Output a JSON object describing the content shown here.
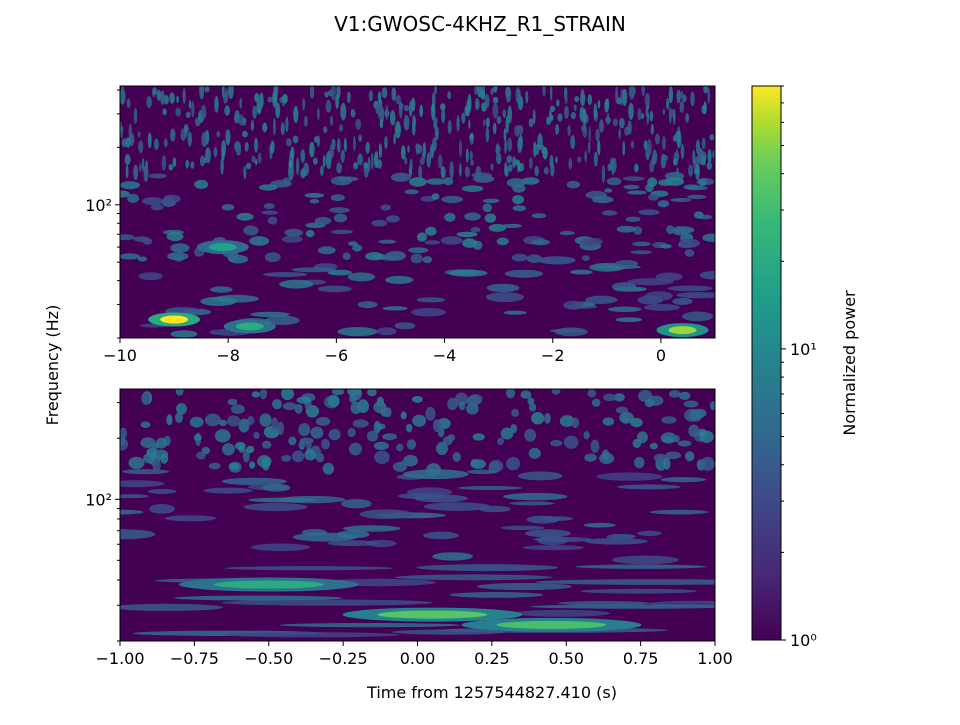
{
  "chart_data": {
    "type": "heatmap",
    "title": "V1:GWOSC-4KHZ_R1_STRAIN",
    "ylabel": "Frequency (Hz)",
    "xlabel": "Time from 1257544827.410 (s)",
    "yscale": "log",
    "panels": [
      {
        "name": "top",
        "xlim": [
          -10,
          1
        ],
        "xticks": [
          -10,
          -8,
          -6,
          -4,
          -2,
          0
        ],
        "xtick_labels": [
          "−10",
          "−8",
          "−6",
          "−4",
          "−2",
          "0"
        ],
        "yticks": [
          100
        ],
        "ytick_labels": [
          "10²"
        ],
        "bright_spots": [
          {
            "t": -9.0,
            "f": 25,
            "power": 80
          },
          {
            "t": 0.4,
            "f": 22,
            "power": 40
          },
          {
            "t": -7.6,
            "f": 23,
            "power": 15
          },
          {
            "t": -8.1,
            "f": 60,
            "power": 12
          }
        ]
      },
      {
        "name": "bottom",
        "xlim": [
          -1.0,
          1.0
        ],
        "xticks": [
          -1.0,
          -0.75,
          -0.5,
          -0.25,
          0.0,
          0.25,
          0.5,
          0.75,
          1.0
        ],
        "xtick_labels": [
          "−1.00",
          "−0.75",
          "−0.50",
          "−0.25",
          "0.00",
          "0.25",
          "0.50",
          "0.75",
          "1.00"
        ],
        "yticks": [
          100
        ],
        "ytick_labels": [
          "10²"
        ],
        "bright_spots": [
          {
            "t": 0.05,
            "f": 27,
            "power": 25
          },
          {
            "t": 0.45,
            "f": 24,
            "power": 22
          },
          {
            "t": -0.5,
            "f": 38,
            "power": 15
          }
        ]
      }
    ],
    "colorbar": {
      "label": "Normalized power",
      "scale": "log",
      "range": [
        1,
        80
      ],
      "colormap": "viridis",
      "tick_labels": [
        "10⁰",
        "10¹"
      ],
      "tick_values": [
        1,
        10
      ]
    }
  }
}
